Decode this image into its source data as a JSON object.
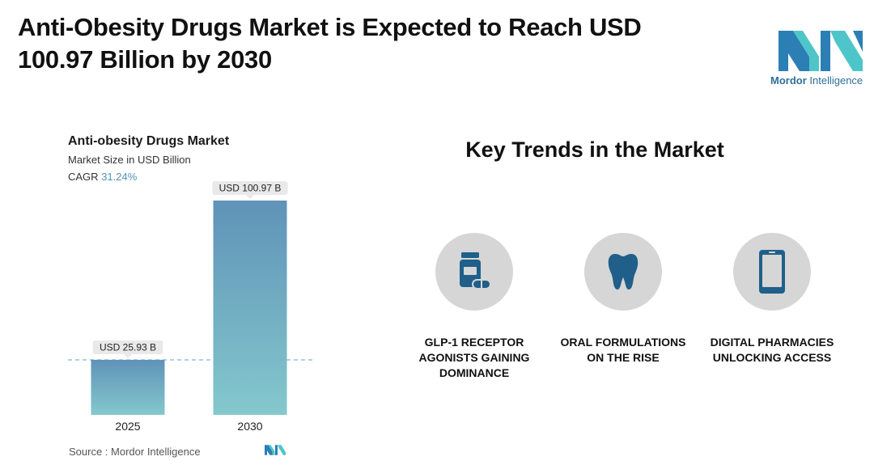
{
  "headline": "Anti-Obesity Drugs Market is Expected to Reach USD 100.97 Billion by 2030",
  "brand": {
    "name_bold": "Mordor",
    "name_rest": " Intelligence",
    "colors": {
      "teal": "#4ec6c9",
      "blue": "#2b7fb5"
    }
  },
  "chart_panel": {
    "title": "Anti-obesity Drugs Market",
    "subtitle": "Market Size in USD Billion",
    "cagr_label": "CAGR",
    "cagr_value": "31.24%",
    "source": "Source :  Mordor Intelligence"
  },
  "chart_data": {
    "type": "bar",
    "title": "Anti-obesity Drugs Market",
    "ylabel": "Market Size in USD Billion",
    "categories": [
      "2025",
      "2030"
    ],
    "values": [
      25.93,
      100.97
    ],
    "data_labels": [
      "USD 25.93 B",
      "USD 100.97 B"
    ],
    "ylim": [
      0,
      100.97
    ],
    "grid": false,
    "reference_line": "dashed line at 2025 value",
    "colors": {
      "bar_top": "#5f93b8",
      "bar_bottom": "#84c8cd",
      "dash": "#5aa7b8"
    }
  },
  "trends": {
    "title": "Key Trends in the Market",
    "items": [
      {
        "icon": "medicine-bottle-icon",
        "lines": [
          "GLP-1 RECEPTOR",
          "AGONISTS GAINING",
          "DOMINANCE"
        ]
      },
      {
        "icon": "tooth-icon",
        "lines": [
          "ORAL FORMULATIONS",
          "ON THE RISE"
        ]
      },
      {
        "icon": "smartphone-icon",
        "lines": [
          "DIGITAL PHARMACIES",
          "UNLOCKING ACCESS"
        ]
      }
    ]
  }
}
